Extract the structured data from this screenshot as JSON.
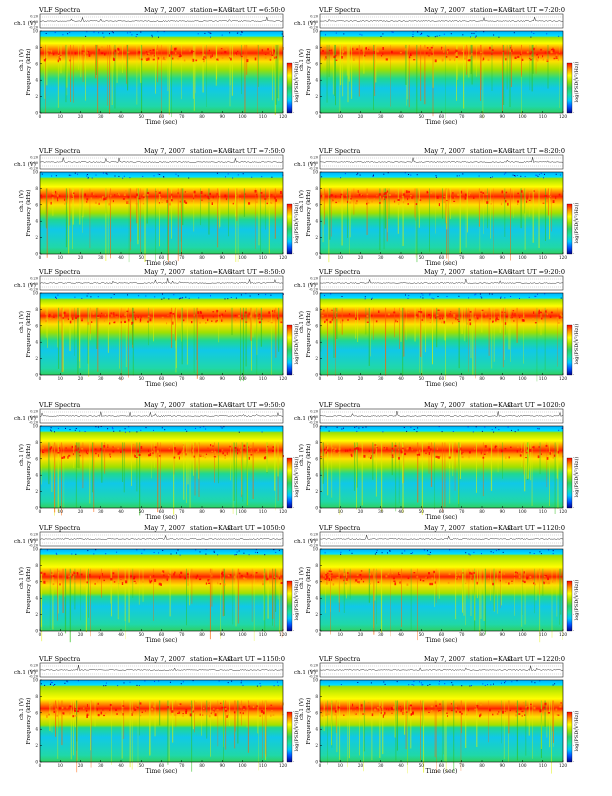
{
  "page": {
    "background": "#ffffff"
  },
  "common": {
    "title": "VLF Spectra",
    "date": "May 7, 2007",
    "station": "station=KAG",
    "start_prefix": "start  UT  =",
    "channel_axis_label": "ch.1 (V)",
    "channel_ticks": [
      "0.20",
      "0.00",
      "-0.20"
    ],
    "freq_axis_label": "Frequency (kHz)",
    "freq_ticks": [
      "0",
      "2",
      "4",
      "6",
      "8",
      "10"
    ],
    "time_axis_label": "Time (sec)",
    "time_ticks": [
      "0",
      "10",
      "20",
      "30",
      "40",
      "50",
      "60",
      "70",
      "80",
      "90",
      "100",
      "110",
      "120"
    ],
    "colorbar_label": "log(PSD(V²/Hz))",
    "colorbar_ticks": [
      "-",
      "-",
      "-",
      "-"
    ]
  },
  "colors": {
    "spectrum_scale": [
      "#00008b",
      "#0050ff",
      "#00c8ff",
      "#20e0a0",
      "#30d060",
      "#a0e000",
      "#ffff00",
      "#ff9000",
      "#ff0000"
    ]
  },
  "chart_data": [
    {
      "type": "heatmap",
      "start_ut": "6:50:0",
      "xlim": [
        0,
        120
      ],
      "ylim": [
        0,
        10
      ],
      "band_center_khz": 7.3
    },
    {
      "type": "heatmap",
      "start_ut": "7:20:0",
      "xlim": [
        0,
        120
      ],
      "ylim": [
        0,
        10
      ],
      "band_center_khz": 7.3
    },
    {
      "type": "heatmap",
      "start_ut": "7:50:0",
      "xlim": [
        0,
        120
      ],
      "ylim": [
        0,
        10
      ],
      "band_center_khz": 7.0
    },
    {
      "type": "heatmap",
      "start_ut": "8:20:0",
      "xlim": [
        0,
        120
      ],
      "ylim": [
        0,
        10
      ],
      "band_center_khz": 7.0
    },
    {
      "type": "heatmap",
      "start_ut": "8:50:0",
      "xlim": [
        0,
        120
      ],
      "ylim": [
        0,
        10
      ],
      "band_center_khz": 7.2
    },
    {
      "type": "heatmap",
      "start_ut": "9:20:0",
      "xlim": [
        0,
        120
      ],
      "ylim": [
        0,
        10
      ],
      "band_center_khz": 7.2
    },
    {
      "type": "heatmap",
      "start_ut": "9:50:0",
      "xlim": [
        0,
        120
      ],
      "ylim": [
        0,
        10
      ],
      "band_center_khz": 7.0
    },
    {
      "type": "heatmap",
      "start_ut": "1020:0",
      "xlim": [
        0,
        120
      ],
      "ylim": [
        0,
        10
      ],
      "band_center_khz": 7.0
    },
    {
      "type": "heatmap",
      "start_ut": "1050:0",
      "xlim": [
        0,
        120
      ],
      "ylim": [
        0,
        10
      ],
      "band_center_khz": 6.6
    },
    {
      "type": "heatmap",
      "start_ut": "1120:0",
      "xlim": [
        0,
        120
      ],
      "ylim": [
        0,
        10
      ],
      "band_center_khz": 6.6
    },
    {
      "type": "heatmap",
      "start_ut": "1150:0",
      "xlim": [
        0,
        120
      ],
      "ylim": [
        0,
        10
      ],
      "band_center_khz": 6.5
    },
    {
      "type": "heatmap",
      "start_ut": "1220:0",
      "xlim": [
        0,
        120
      ],
      "ylim": [
        0,
        10
      ],
      "band_center_khz": 6.5
    }
  ]
}
